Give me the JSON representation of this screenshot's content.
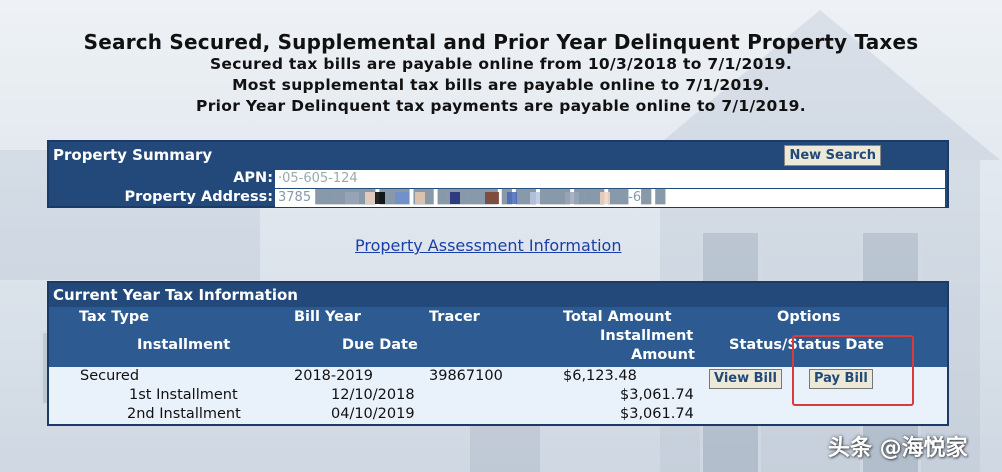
{
  "page": {
    "title": "Search Secured, Supplemental and Prior Year Delinquent Property Taxes",
    "lines": [
      "Secured tax bills are payable online from 10/3/2018 to 7/1/2019.",
      "Most supplemental tax bills are payable online to 7/1/2019.",
      "Prior Year Delinquent tax payments are payable online to 7/1/2019."
    ]
  },
  "property_summary": {
    "heading": "Property Summary",
    "new_search_label": "New Search",
    "apn_label": "APN:",
    "apn_value": "·05-605-124",
    "address_label": "Property Address:",
    "address_value": "3785 ██████ ███ ██ ██████ █ ██ ███ ███ ██-6█ █",
    "blur_colors": [
      "#9aa6b8",
      "#f2d2bf",
      "#000000",
      "#6e8fd0",
      "#e8c9b0",
      "#1e2a78",
      "#7b3f2c",
      "#4a68b8",
      "#b9c6e0"
    ]
  },
  "assessment_link": "Property Assessment Information",
  "current_year": {
    "heading": "Current Year Tax Information",
    "headers": {
      "tax_type": "Tax Type",
      "bill_year": "Bill Year",
      "tracer": "Tracer",
      "total_amount": "Total Amount",
      "options": "Options",
      "installment": "Installment",
      "due_date": "Due Date",
      "installment_amount_1": "Installment",
      "installment_amount_2": "Amount",
      "status_date": "Status/Status Date"
    },
    "row": {
      "tax_type": "Secured",
      "bill_year": "2018-2019",
      "tracer": "39867100",
      "total_amount": "$6,123.48",
      "view_bill_label": "View Bill",
      "pay_bill_label": "Pay Bill"
    },
    "installments": [
      {
        "name": "1st Installment",
        "due_date": "12/10/2018",
        "amount": "$3,061.74"
      },
      {
        "name": "2nd Installment",
        "due_date": "04/10/2019",
        "amount": "$3,061.74"
      }
    ]
  },
  "watermark": "头条 @海悦家"
}
